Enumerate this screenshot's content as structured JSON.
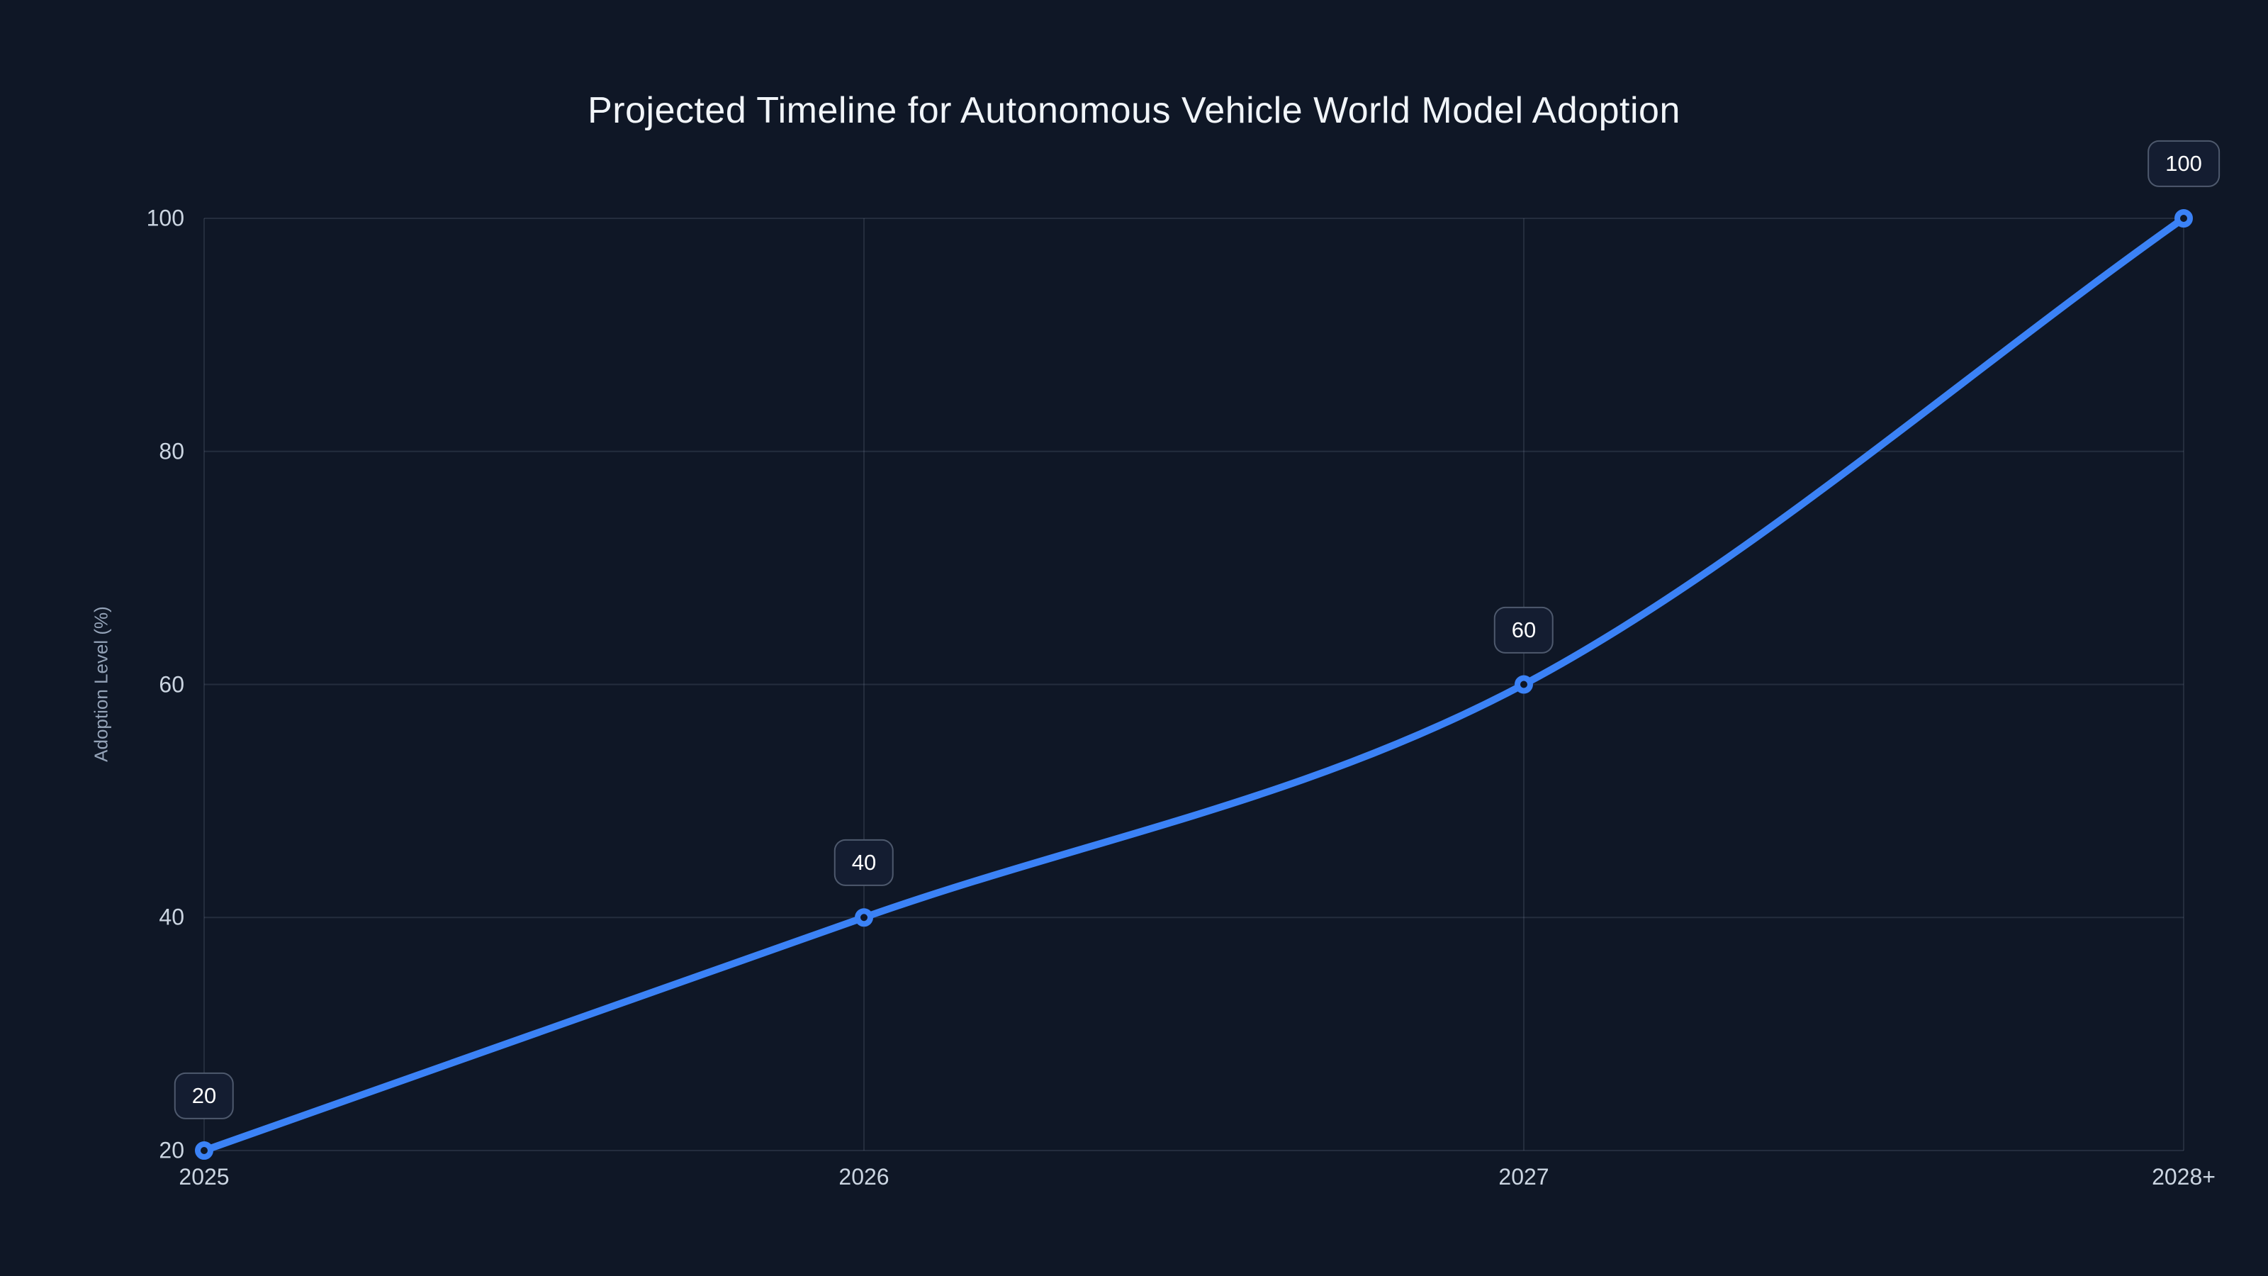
{
  "chart_data": {
    "type": "line",
    "title": "Projected Timeline for Autonomous Vehicle World Model Adoption",
    "categories": [
      "2025",
      "2026",
      "2027",
      "2028+"
    ],
    "values": [
      20,
      40,
      60,
      100
    ],
    "point_labels": [
      "20",
      "40",
      "60",
      "100"
    ],
    "xlabel": "",
    "ylabel": "Adoption Level (%)",
    "y_ticks": [
      100,
      80,
      60,
      40,
      20
    ],
    "ylim": [
      20,
      100
    ],
    "grid": true,
    "legend_position": "none",
    "line_interpolation": "monotone",
    "colors": {
      "background": "#0f1726",
      "line": "#3b82f6",
      "marker_stroke": "#3b82f6",
      "marker_fill": "#0f1726",
      "grid": "rgba(148,163,184,0.16)",
      "tick_label": "#cbd5e1",
      "axis_title": "#94a3b8",
      "title": "#f1f5f9",
      "badge_background": "#141d31",
      "badge_border": "rgba(148,163,184,0.45)",
      "badge_text": "#ffffff"
    }
  }
}
